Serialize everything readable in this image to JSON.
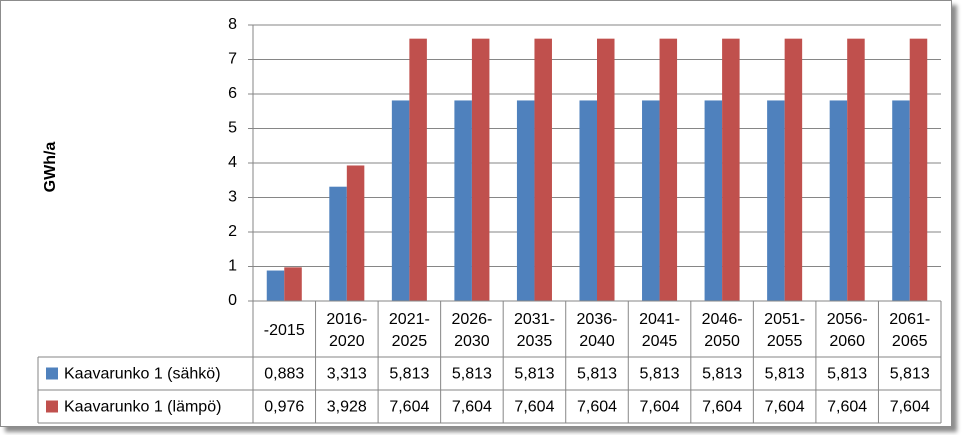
{
  "chart_data": {
    "type": "bar",
    "title": "",
    "xlabel": "",
    "ylabel": "GWh/a",
    "ylim": [
      0,
      8
    ],
    "yticks": [
      "0",
      "1",
      "2",
      "3",
      "4",
      "5",
      "6",
      "7",
      "8"
    ],
    "grid": true,
    "legend": "data table",
    "categories": [
      [
        "-2015"
      ],
      [
        "2016-",
        "2020"
      ],
      [
        "2021-",
        "2025"
      ],
      [
        "2026-",
        "2030"
      ],
      [
        "2031-",
        "2035"
      ],
      [
        "2036-",
        "2040"
      ],
      [
        "2041-",
        "2045"
      ],
      [
        "2046-",
        "2050"
      ],
      [
        "2051-",
        "2055"
      ],
      [
        "2056-",
        "2060"
      ],
      [
        "2061-",
        "2065"
      ]
    ],
    "series": [
      {
        "name": "Kaavarunko 1 (sähkö)",
        "color": "#4f81bd",
        "values": [
          0.883,
          3.313,
          5.813,
          5.813,
          5.813,
          5.813,
          5.813,
          5.813,
          5.813,
          5.813,
          5.813
        ],
        "labels": [
          "0,883",
          "3,313",
          "5,813",
          "5,813",
          "5,813",
          "5,813",
          "5,813",
          "5,813",
          "5,813",
          "5,813",
          "5,813"
        ]
      },
      {
        "name": "Kaavarunko 1 (lämpö)",
        "color": "#c0504d",
        "values": [
          0.976,
          3.928,
          7.604,
          7.604,
          7.604,
          7.604,
          7.604,
          7.604,
          7.604,
          7.604,
          7.604
        ],
        "labels": [
          "0,976",
          "3,928",
          "7,604",
          "7,604",
          "7,604",
          "7,604",
          "7,604",
          "7,604",
          "7,604",
          "7,604",
          "7,604"
        ]
      }
    ]
  }
}
